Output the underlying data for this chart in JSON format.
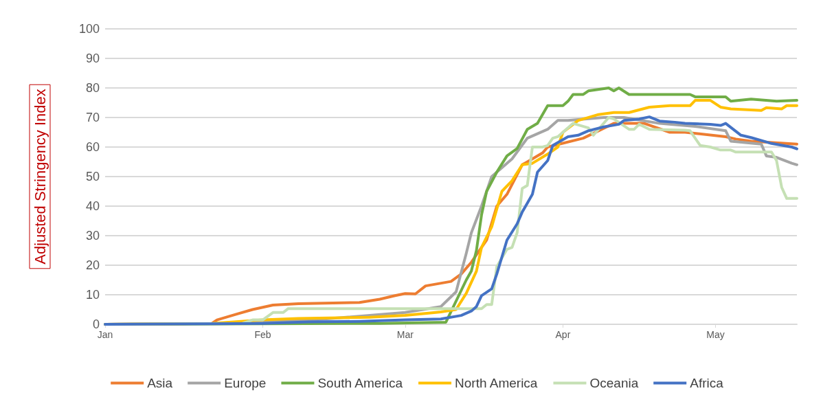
{
  "chart_data": {
    "type": "line",
    "ylabel": "Adjusted Stringency Index",
    "xlim": [
      "--01-01",
      "--05-17"
    ],
    "xticks": [
      {
        "value": "--01-01",
        "label": "Jan"
      },
      {
        "value": "--02-01",
        "label": "Feb"
      },
      {
        "value": "--03-01",
        "label": "Mar"
      },
      {
        "value": "--04-01",
        "label": "Apr"
      },
      {
        "value": "--05-01",
        "label": "May"
      }
    ],
    "ylim": [
      0,
      100
    ],
    "yticks": [
      0,
      10,
      20,
      30,
      40,
      50,
      60,
      70,
      80,
      90,
      100
    ],
    "grid": "y",
    "legend": "bottom",
    "marker": "none",
    "line_style": "solid",
    "series": [
      {
        "name": "Asia",
        "color": "#ed7d31",
        "x": [
          "--01-01",
          "--01-22",
          "--01-23",
          "--01-27",
          "--01-30",
          "--02-03",
          "--02-08",
          "--02-20",
          "--02-24",
          "--02-27",
          "--03-01",
          "--03-03",
          "--03-05",
          "--03-10",
          "--03-12",
          "--03-14",
          "--03-17",
          "--03-19",
          "--03-21",
          "--03-24",
          "--03-26",
          "--03-28",
          "--03-29",
          "--04-05",
          "--04-11",
          "--04-17",
          "--04-22",
          "--04-25",
          "--05-03",
          "--05-05",
          "--05-08",
          "--05-17"
        ],
        "values": [
          0,
          0.3,
          1.5,
          3.5,
          5,
          6.5,
          7,
          7.4,
          8.5,
          9.7,
          10.4,
          10.3,
          13,
          14.5,
          17,
          21,
          28.5,
          40,
          44,
          54,
          56,
          58,
          60,
          63,
          68,
          68,
          65,
          65,
          63.5,
          62.7,
          62,
          61
        ]
      },
      {
        "name": "Europe",
        "color": "#a5a5a5",
        "x": [
          "--01-01",
          "--01-22",
          "--02-11",
          "--03-01",
          "--03-08",
          "--03-11",
          "--03-13",
          "--03-14",
          "--03-16",
          "--03-18",
          "--03-22",
          "--03-25",
          "--03-29",
          "--03-31",
          "--04-02",
          "--04-09",
          "--04-13",
          "--04-20",
          "--04-27",
          "--05-03",
          "--05-04",
          "--05-10",
          "--05-11",
          "--05-13",
          "--05-16",
          "--05-17"
        ],
        "values": [
          0,
          0.3,
          1.5,
          4,
          6,
          11,
          24,
          31,
          40,
          50,
          56,
          63,
          66,
          69,
          69,
          70,
          70,
          68,
          67,
          65.5,
          62,
          61,
          57,
          56.5,
          54.5,
          54
        ]
      },
      {
        "name": "South America",
        "color": "#70ad47",
        "x": [
          "--01-01",
          "--02-24",
          "--03-09",
          "--03-13",
          "--03-14",
          "--03-15",
          "--03-16",
          "--03-17",
          "--03-19",
          "--03-21",
          "--03-23",
          "--03-25",
          "--03-27",
          "--03-29",
          "--04-01",
          "--04-02",
          "--04-03",
          "--04-05",
          "--04-06",
          "--04-10",
          "--04-11",
          "--04-12",
          "--04-14",
          "--04-18",
          "--04-26",
          "--04-27",
          "--05-03",
          "--05-04",
          "--05-08",
          "--05-13",
          "--05-17"
        ],
        "values": [
          0,
          0.3,
          0.7,
          15,
          18,
          25,
          37,
          45,
          51.5,
          57,
          59.5,
          66,
          68,
          74,
          74,
          75.5,
          77.8,
          77.8,
          79,
          80,
          79,
          80,
          77.8,
          77.8,
          77.8,
          77,
          77,
          75.5,
          76.2,
          75.5,
          75.8
        ]
      },
      {
        "name": "North America",
        "color": "#ffc000",
        "x": [
          "--01-01",
          "--01-22",
          "--02-01",
          "--02-08",
          "--02-22",
          "--03-01",
          "--03-07",
          "--03-08",
          "--03-11",
          "--03-13",
          "--03-15",
          "--03-16",
          "--03-18",
          "--03-20",
          "--03-22",
          "--03-24",
          "--03-26",
          "--03-29",
          "--03-31",
          "--04-01",
          "--04-04",
          "--04-08",
          "--04-11",
          "--04-14",
          "--04-18",
          "--04-22",
          "--04-26",
          "--04-27",
          "--04-30",
          "--05-02",
          "--05-04",
          "--05-10",
          "--05-11",
          "--05-14",
          "--05-15",
          "--05-17"
        ],
        "values": [
          0,
          0.3,
          1.5,
          2,
          2.4,
          3,
          4,
          4.2,
          5,
          10.5,
          18,
          26,
          33,
          45,
          48.6,
          54,
          54.5,
          57.6,
          60,
          65,
          69,
          71,
          71.7,
          71.7,
          73.5,
          74,
          74,
          75.8,
          75.8,
          73.5,
          72.9,
          72.4,
          73.3,
          72.9,
          74,
          74
        ]
      },
      {
        "name": "Oceania",
        "color": "#c5e0b4",
        "x": [
          "--01-01",
          "--01-28",
          "--01-30",
          "--02-01",
          "--02-03",
          "--02-05",
          "--02-06",
          "--03-16",
          "--03-17",
          "--03-18",
          "--03-19",
          "--03-21",
          "--03-22",
          "--03-23",
          "--03-24",
          "--03-25",
          "--03-26",
          "--03-28",
          "--03-29",
          "--03-30",
          "--03-31",
          "--04-03",
          "--04-06",
          "--04-07",
          "--04-10",
          "--04-11",
          "--04-14",
          "--04-15",
          "--04-16",
          "--04-18",
          "--04-25",
          "--04-26",
          "--04-28",
          "--04-30",
          "--05-02",
          "--05-04",
          "--05-05",
          "--05-12",
          "--05-13",
          "--05-14",
          "--05-15",
          "--05-17"
        ],
        "values": [
          0,
          0.3,
          1.5,
          1.5,
          4,
          4,
          5.3,
          5.3,
          6.7,
          6.7,
          19.5,
          25.4,
          26,
          31,
          46,
          47,
          60,
          60,
          60.5,
          63,
          63.5,
          68,
          66.5,
          64,
          70,
          69.5,
          66,
          66,
          67.7,
          66,
          65.7,
          65.5,
          60.5,
          60,
          59,
          59,
          58.3,
          58.3,
          55.4,
          46.4,
          42.6,
          42.6
        ]
      },
      {
        "name": "Africa",
        "color": "#4472c4",
        "x": [
          "--01-01",
          "--01-22",
          "--02-01",
          "--02-10",
          "--02-20",
          "--03-01",
          "--03-08",
          "--03-12",
          "--03-14",
          "--03-15",
          "--03-16",
          "--03-18",
          "--03-19",
          "--03-21",
          "--03-23",
          "--03-24",
          "--03-26",
          "--03-27",
          "--03-29",
          "--03-30",
          "--04-02",
          "--04-04",
          "--04-06",
          "--04-09",
          "--04-12",
          "--04-13",
          "--04-16",
          "--04-18",
          "--04-20",
          "--04-23",
          "--04-25",
          "--04-30",
          "--05-02",
          "--05-03",
          "--05-06",
          "--05-08",
          "--05-11",
          "--05-12",
          "--05-16",
          "--05-17"
        ],
        "values": [
          0,
          0.2,
          0.3,
          0.8,
          1,
          1.5,
          1.8,
          3,
          4.5,
          6,
          9.7,
          12,
          17,
          28.5,
          34,
          38,
          44,
          51.5,
          55.4,
          60.5,
          63.5,
          64,
          65.5,
          66.8,
          67.7,
          69,
          69.5,
          70.2,
          68.8,
          68.4,
          68,
          67.7,
          67.3,
          68,
          64,
          63.2,
          61.7,
          61.2,
          60,
          59.4
        ]
      }
    ]
  }
}
